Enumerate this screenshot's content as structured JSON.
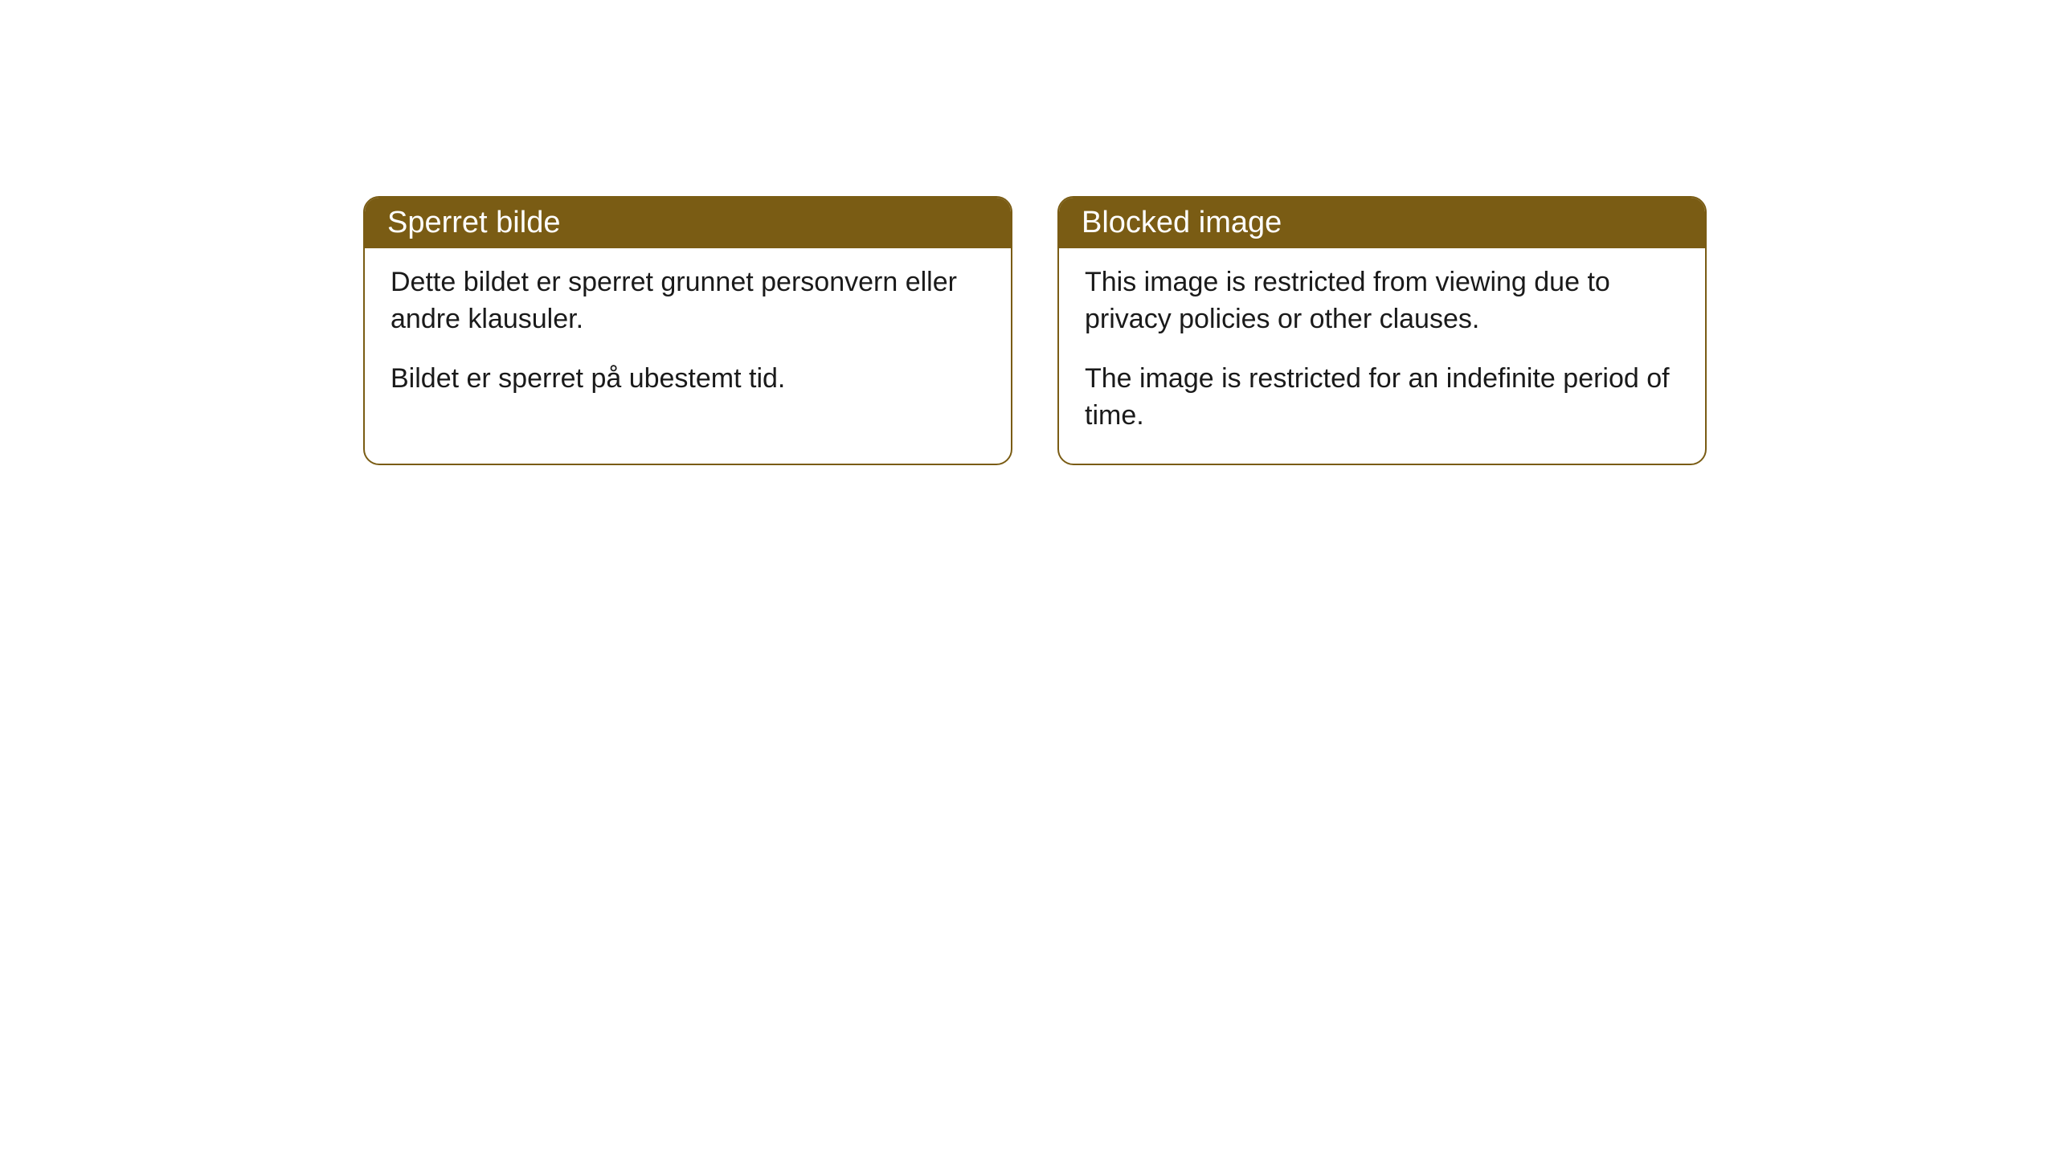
{
  "cards": [
    {
      "title": "Sperret bilde",
      "paragraph1": "Dette bildet er sperret grunnet personvern eller andre klausuler.",
      "paragraph2": "Bildet er sperret på ubestemt tid."
    },
    {
      "title": "Blocked image",
      "paragraph1": "This image is restricted from viewing due to privacy policies or other clauses.",
      "paragraph2": "The image is restricted for an indefinite period of time."
    }
  ],
  "styling": {
    "header_bg_color": "#7a5c14",
    "header_text_color": "#ffffff",
    "border_color": "#7a5c14",
    "body_bg_color": "#ffffff",
    "body_text_color": "#1a1a1a",
    "border_radius": 20,
    "title_fontsize": 38,
    "body_fontsize": 34
  }
}
